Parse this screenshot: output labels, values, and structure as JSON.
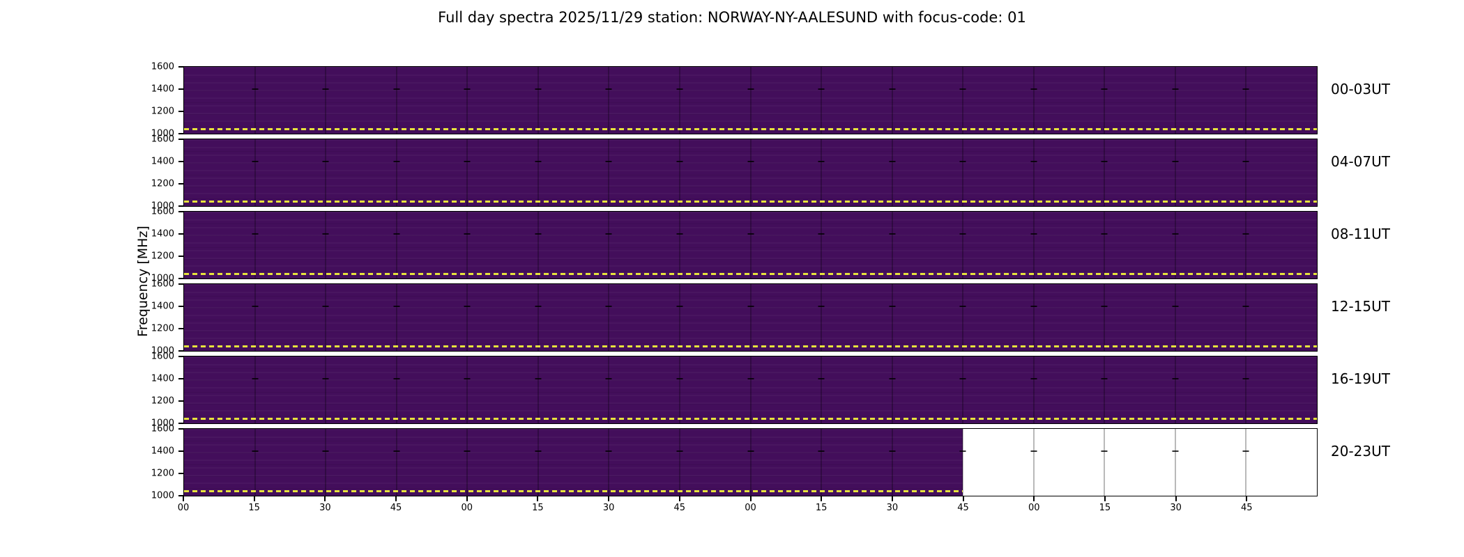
{
  "title": "Full day spectra 2025/11/29 station: NORWAY-NY-AALESUND with focus-code: 01",
  "ylabel": "Frequency [MHz]",
  "chart_data": {
    "type": "heatmap",
    "panels": [
      {
        "label": "00-03UT",
        "data_fraction": 1.0
      },
      {
        "label": "04-07UT",
        "data_fraction": 1.0
      },
      {
        "label": "08-11UT",
        "data_fraction": 1.0
      },
      {
        "label": "12-15UT",
        "data_fraction": 1.0
      },
      {
        "label": "16-19UT",
        "data_fraction": 1.0
      },
      {
        "label": "20-23UT",
        "data_fraction": 0.6875
      }
    ],
    "ylim": [
      1000,
      1600
    ],
    "y_ticks": [
      "1600",
      "1400",
      "1200",
      "1000"
    ],
    "x_tick_labels": [
      "00",
      "15",
      "30",
      "45",
      "00",
      "15",
      "30",
      "45",
      "00",
      "15",
      "30",
      "45",
      "00",
      "15",
      "30",
      "45"
    ],
    "segments": 16,
    "hours_per_panel": 4,
    "minutes_per_segment": 15,
    "dashed_line_mhz": 1010,
    "legend_position": "none",
    "grid": true,
    "colors": {
      "spectrum": "#430e5b",
      "no_data": "#ffffff",
      "dashed_line": "#e6e23c",
      "grid_line": "#000000",
      "border": "#000000",
      "text": "#000000"
    }
  }
}
